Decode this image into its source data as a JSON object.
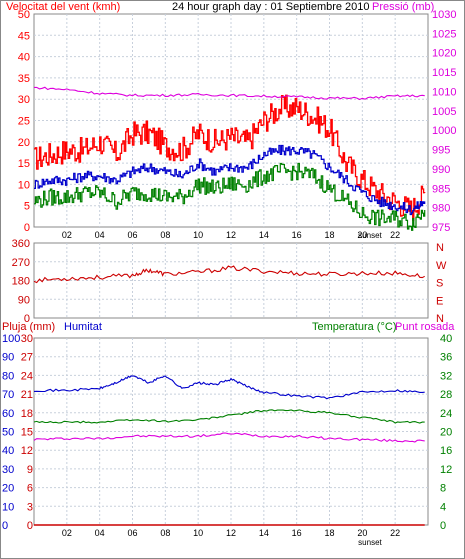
{
  "chart_data": [
    {
      "id": "wind_pressure",
      "type": "line",
      "title": "24 hour graph day : 01 Septiembre 2010",
      "ylabel_left": "Velocitat del vent (kmh)",
      "ylabel_right": "Pressió (mb)",
      "xticks": [
        "02",
        "04",
        "06",
        "08",
        "10",
        "12",
        "14",
        "16",
        "18",
        "20",
        "22"
      ],
      "sunset_label": "sunset",
      "sunset_hour": 20.6,
      "x_range": [
        0,
        24
      ],
      "ylim_left": [
        0,
        50
      ],
      "yticks_left": [
        "0",
        "5",
        "10",
        "15",
        "20",
        "25",
        "30",
        "35",
        "40",
        "45",
        "50"
      ],
      "ylim_right": [
        975,
        1030
      ],
      "yticks_right": [
        "975",
        "980",
        "985",
        "990",
        "995",
        "1000",
        "1005",
        "1010",
        "1015",
        "1020",
        "1025",
        "1030"
      ],
      "series": [
        {
          "key": "gust",
          "axis": "left",
          "color": "#ff0000",
          "x": [
            0,
            1,
            2,
            3,
            4,
            5,
            6,
            7,
            8,
            9,
            10,
            11,
            12,
            13,
            14,
            15,
            16,
            17,
            18,
            19,
            20,
            21,
            22,
            23,
            23.8
          ],
          "y": [
            16,
            17,
            18,
            18,
            20,
            17,
            22,
            22,
            19,
            18,
            22,
            20,
            21,
            20,
            25,
            28,
            28,
            26,
            23,
            15,
            11,
            8,
            6,
            4,
            8
          ]
        },
        {
          "key": "wind_avg",
          "axis": "left",
          "color": "#0000cc",
          "x": [
            0,
            1,
            2,
            3,
            4,
            5,
            6,
            7,
            8,
            9,
            10,
            11,
            12,
            13,
            14,
            15,
            16,
            17,
            18,
            19,
            20,
            21,
            22,
            23,
            23.8
          ],
          "y": [
            10,
            11,
            11,
            12,
            12,
            11,
            13,
            14,
            13,
            12,
            15,
            13,
            14,
            14,
            17,
            18,
            18,
            17,
            14,
            11,
            8,
            6,
            5,
            4,
            6
          ]
        },
        {
          "key": "wind_min",
          "axis": "left",
          "color": "#008000",
          "x": [
            0,
            1,
            2,
            3,
            4,
            5,
            6,
            7,
            8,
            9,
            10,
            11,
            12,
            13,
            14,
            15,
            16,
            17,
            18,
            19,
            20,
            21,
            22,
            23,
            23.8
          ],
          "y": [
            6,
            7,
            7,
            8,
            8,
            6,
            8,
            8,
            7,
            7,
            10,
            9,
            10,
            10,
            12,
            13,
            13,
            12,
            9,
            6,
            3,
            2,
            2,
            1,
            4
          ]
        },
        {
          "key": "pressure",
          "axis": "right",
          "color": "#dd00dd",
          "x": [
            0,
            2,
            4,
            6,
            8,
            10,
            12,
            14,
            16,
            18,
            20,
            22,
            23.8
          ],
          "y": [
            1011,
            1010.5,
            1009.5,
            1009,
            1009,
            1009.2,
            1009,
            1008.8,
            1008.6,
            1008.3,
            1008.2,
            1008.8,
            1008.9
          ]
        }
      ]
    },
    {
      "id": "wind_direction",
      "type": "line",
      "ylim": [
        0,
        360
      ],
      "yticks": [
        "0",
        "90",
        "180",
        "270",
        "360"
      ],
      "right_labels": [
        "N",
        "W",
        "S",
        "E",
        "N"
      ],
      "x_range": [
        0,
        24
      ],
      "series": [
        {
          "key": "direction",
          "color": "#cc0000",
          "x": [
            0,
            2,
            4,
            6,
            7,
            8,
            10,
            12,
            14,
            16,
            18,
            20,
            22,
            23.8
          ],
          "y": [
            180,
            190,
            195,
            205,
            230,
            210,
            220,
            240,
            225,
            215,
            210,
            215,
            215,
            200
          ]
        }
      ]
    },
    {
      "id": "rain_humidity_temp",
      "type": "line",
      "ylabel_rain": "Pluja (mm)",
      "ylabel_hum": "Humitat",
      "ylabel_temp": "Temperatura (°C)",
      "ylabel_dew": "Punt rosada",
      "xticks": [
        "02",
        "04",
        "06",
        "08",
        "10",
        "12",
        "14",
        "16",
        "18",
        "20",
        "22"
      ],
      "sunset_label": "sunset",
      "sunset_hour": 20.6,
      "x_range": [
        0,
        24
      ],
      "ylim_rain": [
        0,
        30
      ],
      "yticks_rain": [
        "0",
        "3",
        "6",
        "9",
        "12",
        "15",
        "18",
        "21",
        "24",
        "27",
        "30"
      ],
      "ylim_hum": [
        0,
        100
      ],
      "yticks_hum": [
        "0",
        "10",
        "20",
        "30",
        "40",
        "50",
        "60",
        "70",
        "80",
        "90",
        "100"
      ],
      "ylim_temp": [
        0,
        40
      ],
      "yticks_temp": [
        "0",
        "4",
        "8",
        "12",
        "16",
        "20",
        "24",
        "28",
        "32",
        "36",
        "40"
      ],
      "series": [
        {
          "key": "humidity",
          "axis": "hum",
          "color": "#0000cc",
          "x": [
            0,
            2,
            4,
            5,
            6,
            7,
            8,
            9,
            10,
            11,
            12,
            13,
            14,
            16,
            18,
            20,
            22,
            23.8
          ],
          "y": [
            72,
            72,
            73,
            76,
            80,
            76,
            80,
            73,
            76,
            75,
            78,
            74,
            71,
            69,
            68,
            71,
            72,
            71
          ]
        },
        {
          "key": "temperature",
          "axis": "temp",
          "color": "#008000",
          "x": [
            0,
            2,
            4,
            6,
            8,
            10,
            12,
            14,
            16,
            18,
            20,
            22,
            23.8
          ],
          "y": [
            22,
            22,
            22,
            22.5,
            22.2,
            22.5,
            23.5,
            24.5,
            24.5,
            24,
            23,
            22,
            22
          ]
        },
        {
          "key": "dewpoint",
          "axis": "temp",
          "color": "#dd00dd",
          "x": [
            0,
            2,
            4,
            6,
            8,
            10,
            12,
            14,
            16,
            18,
            20,
            22,
            23.8
          ],
          "y": [
            18.3,
            18.5,
            18.5,
            19,
            19,
            19,
            19.6,
            19,
            19,
            18.5,
            18.3,
            18,
            18
          ]
        },
        {
          "key": "rain",
          "axis": "rain",
          "color": "#cc0000",
          "x": [
            0,
            23.8
          ],
          "y": [
            0,
            0
          ]
        }
      ]
    }
  ]
}
